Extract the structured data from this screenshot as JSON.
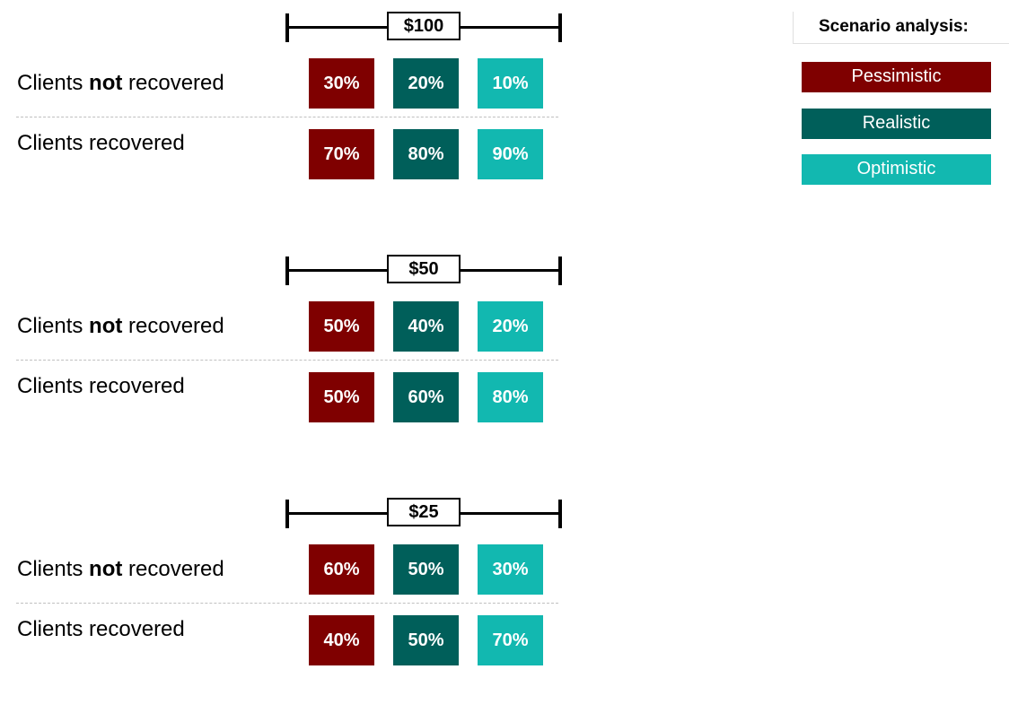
{
  "legend": {
    "title": "Scenario analysis:",
    "items": [
      {
        "label": "Pessimistic",
        "color": "#7f0000"
      },
      {
        "label": "Realistic",
        "color": "#005f5a"
      },
      {
        "label": "Optimistic",
        "color": "#12b8b0"
      }
    ]
  },
  "labels": {
    "not_prefix": "Clients ",
    "not_bold": "not",
    "not_suffix": " recovered",
    "recovered": "Clients recovered"
  },
  "groups": [
    {
      "amount": "$100",
      "not_recovered": [
        "30%",
        "20%",
        "10%"
      ],
      "recovered": [
        "70%",
        "80%",
        "90%"
      ]
    },
    {
      "amount": "$50",
      "not_recovered": [
        "50%",
        "40%",
        "20%"
      ],
      "recovered": [
        "50%",
        "60%",
        "80%"
      ]
    },
    {
      "amount": "$25",
      "not_recovered": [
        "60%",
        "50%",
        "30%"
      ],
      "recovered": [
        "40%",
        "50%",
        "70%"
      ]
    }
  ]
}
